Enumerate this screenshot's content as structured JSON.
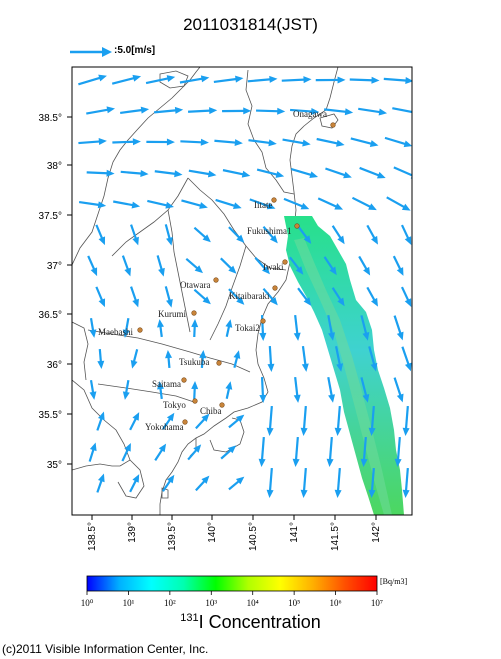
{
  "title": "2011031814(JST)",
  "wind_legend": {
    "label": ":5.0[m/s]"
  },
  "map": {
    "lat_ticks": [
      "38.5°",
      "38°",
      "37.5°",
      "37°",
      "36.5°",
      "36°",
      "35.5°",
      "35°"
    ],
    "lon_ticks": [
      "138.5°",
      "139°",
      "139.5°",
      "140°",
      "140.5°",
      "141°",
      "141.5°",
      "142°"
    ],
    "cities": [
      "Onagawa",
      "Iitate",
      "Fukushima1",
      "Iwaki",
      "Otawara",
      "Kitaibaraki",
      "Kurumi",
      "Tokai2",
      "Maebashi",
      "Tsukuba",
      "Saitama",
      "Tokyo",
      "Chiba",
      "Yokohama"
    ],
    "arrow_color": "#1a9ff0",
    "boundary_color": "#555555"
  },
  "colorbar": {
    "unit": "[Bq/m3]",
    "tick_labels": [
      "10⁰",
      "10¹",
      "10²",
      "10³",
      "10⁴",
      "10⁵",
      "10⁶",
      "10⁷"
    ],
    "colors": [
      "#0000ff",
      "#00b0ff",
      "#00ffff",
      "#00ffb0",
      "#00ff00",
      "#b0ff00",
      "#ffff00",
      "#ffb000",
      "#ff5000",
      "#ff0000"
    ],
    "title_isotope": "131",
    "title_text": "I Concentration"
  },
  "footer": {
    "copyright": "(c)2011 Visible Information Center, Inc."
  }
}
